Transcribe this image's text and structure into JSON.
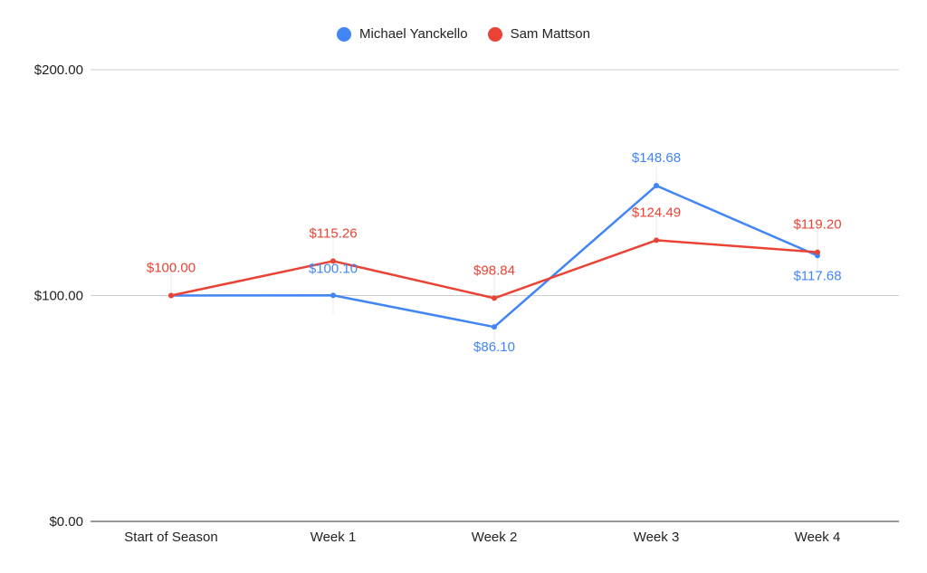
{
  "chart_data": {
    "type": "line",
    "categories": [
      "Start of Season",
      "Week 1",
      "Week 2",
      "Week 3",
      "Week 4"
    ],
    "series": [
      {
        "name": "Michael Yanckello",
        "color": "#4285F4",
        "values": [
          100.0,
          100.1,
          86.1,
          148.68,
          117.68
        ],
        "labels": [
          "",
          "$100.10",
          "$86.10",
          "$148.68",
          "$117.68"
        ]
      },
      {
        "name": "Sam Mattson",
        "color": "#EA4335",
        "values": [
          100.0,
          115.26,
          98.84,
          124.49,
          119.2
        ],
        "labels": [
          "$100.00",
          "$115.26",
          "$98.84",
          "$124.49",
          "$119.20"
        ]
      }
    ],
    "ylim": [
      0,
      200
    ],
    "yticks": [
      0,
      100,
      200
    ],
    "ytick_labels": [
      "$0.00",
      "$100.00",
      "$200.00"
    ],
    "legend_position": "top-center",
    "grid": true
  }
}
